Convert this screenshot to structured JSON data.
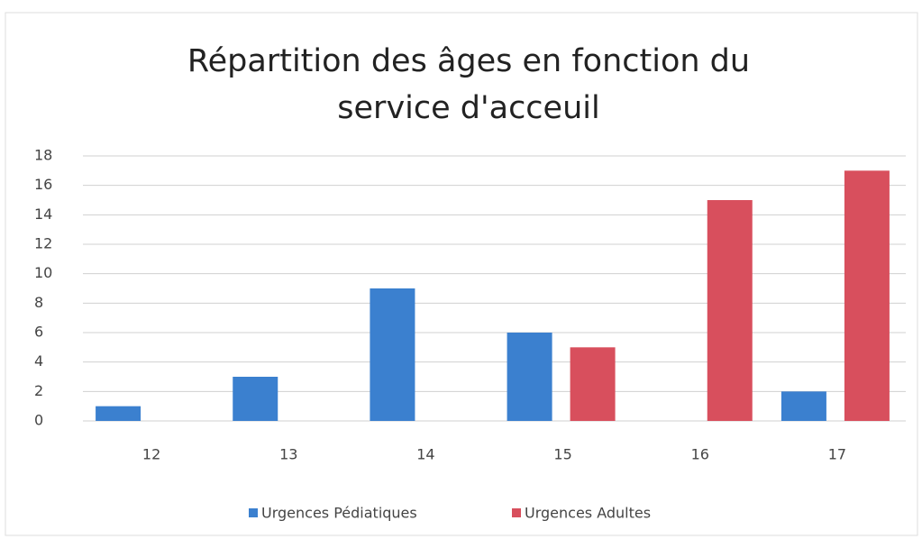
{
  "chart_data": {
    "type": "bar",
    "title": "Répartition des âges en fonction du service d'acceuil",
    "categories": [
      "12",
      "13",
      "14",
      "15",
      "16",
      "17"
    ],
    "series": [
      {
        "name": "Urgences Pédiatiques",
        "color": "#3b80cf",
        "values": [
          1,
          3,
          9,
          6,
          0,
          2
        ]
      },
      {
        "name": "Urgences Adultes",
        "color": "#d84f5d",
        "values": [
          0,
          0,
          0,
          5,
          15,
          17
        ]
      }
    ],
    "ylim": [
      0,
      18
    ],
    "yticks": [
      0,
      2,
      4,
      6,
      8,
      10,
      12,
      14,
      16,
      18
    ],
    "grid": true,
    "legend": "bottom"
  }
}
